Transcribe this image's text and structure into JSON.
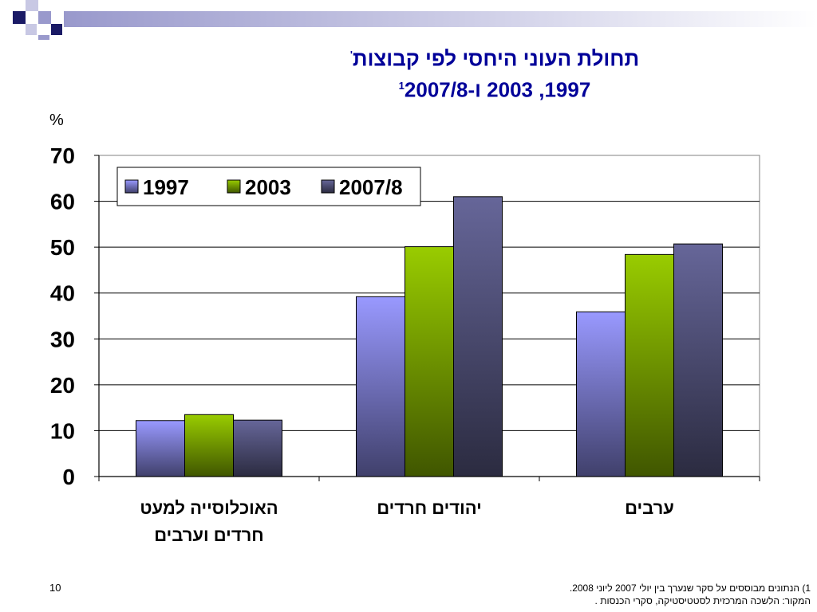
{
  "slide": {
    "title_line1": "תחולת העוני היחסי לפי קבוצות",
    "title_line1_mark": "'",
    "title_line2": "1997, 2003 ו-2007/8",
    "title_line2_sup": "1",
    "unit": "%",
    "page_number": "10",
    "footnote_line1": "1)       הנתונים מבוססים על סקר שנערך בין יולי 2007 ליוני  2008.",
    "footnote_line2": "המקור: הלשכה המרכזית לסטטיסטיקה, סקרי הכנסות  .",
    "colors": {
      "title": "#000099",
      "deco_dark": "#1a1a66",
      "deco_light": "#9999cc"
    }
  },
  "chart_data": {
    "type": "bar",
    "categories": [
      "האוכלוסייה למעט חרדים וערבים",
      "יהודים חרדים",
      "ערבים"
    ],
    "category_lines": [
      [
        "האוכלוסייה למעט",
        "חרדים וערבים"
      ],
      [
        "יהודים חרדים"
      ],
      [
        "ערבים"
      ]
    ],
    "series": [
      {
        "name": "1997",
        "values": [
          12.2,
          39.2,
          35.9
        ],
        "color": "#9999ff"
      },
      {
        "name": "2003",
        "values": [
          13.5,
          50.1,
          48.4
        ],
        "color": "#99cc00"
      },
      {
        "name": "2007/8",
        "values": [
          12.3,
          61.0,
          50.7
        ],
        "color": "#666699"
      }
    ],
    "ylim": [
      0,
      70
    ],
    "yticks": [
      0,
      10,
      20,
      30,
      40,
      50,
      60,
      70
    ],
    "ylabel": "%",
    "grid": true,
    "legend": "top-left, inside plot"
  }
}
